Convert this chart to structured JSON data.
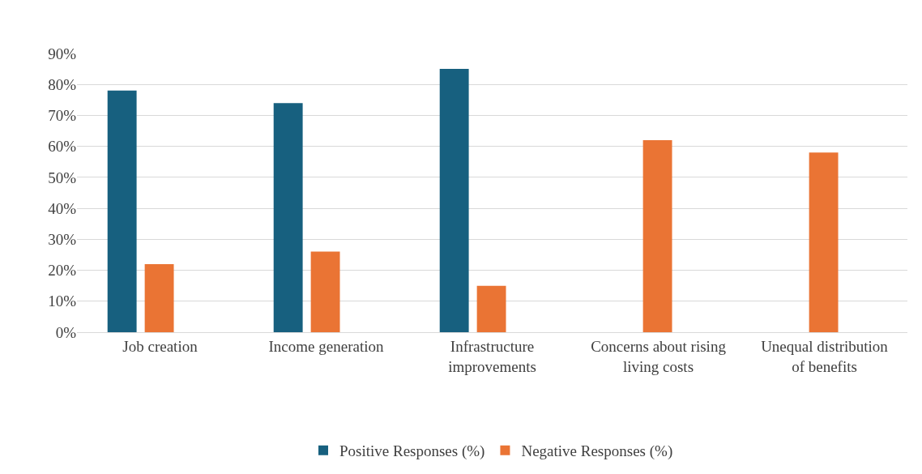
{
  "chart_data": {
    "type": "bar",
    "categories": [
      "Job creation",
      "Income generation",
      "Infrastructure improvements",
      "Concerns about rising living costs",
      "Unequal distribution of benefits"
    ],
    "series": [
      {
        "name": "Positive Responses (%)",
        "color": "#17607f",
        "values": [
          78,
          74,
          85,
          null,
          null
        ]
      },
      {
        "name": "Negative Responses (%)",
        "color": "#ea7434",
        "values": [
          22,
          26,
          15,
          62,
          58
        ]
      }
    ],
    "ylim": [
      0,
      90
    ],
    "yticks": [
      {
        "value": 0,
        "label": "0%"
      },
      {
        "value": 10,
        "label": "10%"
      },
      {
        "value": 20,
        "label": "20%"
      },
      {
        "value": 30,
        "label": "30%"
      },
      {
        "value": 40,
        "label": "40%"
      },
      {
        "value": 50,
        "label": "50%"
      },
      {
        "value": 60,
        "label": "60%"
      },
      {
        "value": 70,
        "label": "70%"
      },
      {
        "value": 80,
        "label": "80%"
      },
      {
        "value": 90,
        "label": "90%"
      }
    ],
    "grid": "y",
    "legend": "bottom"
  }
}
